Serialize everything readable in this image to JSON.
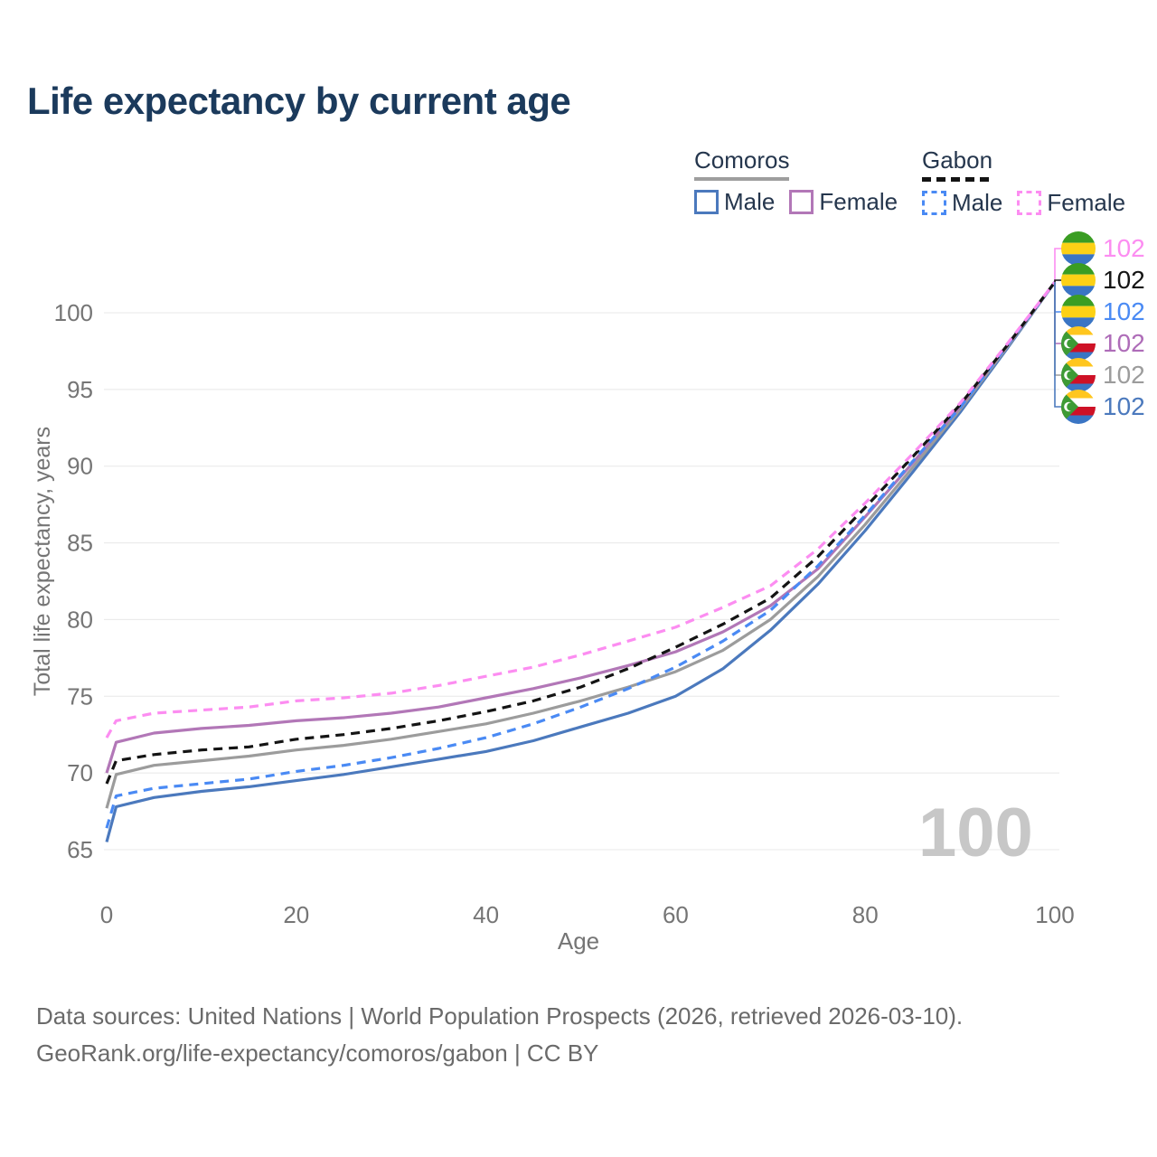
{
  "title": "Life expectancy by current age",
  "legend": {
    "groups": [
      {
        "name": "Comoros",
        "line_style": "solid",
        "items": [
          {
            "label": "Male",
            "color": "#4b79bd",
            "dashed": false
          },
          {
            "label": "Female",
            "color": "#b277b7",
            "dashed": false
          }
        ]
      },
      {
        "name": "Gabon",
        "line_style": "dashed",
        "items": [
          {
            "label": "Male",
            "color": "#4a8af4",
            "dashed": true
          },
          {
            "label": "Female",
            "color": "#fc8df1",
            "dashed": true
          }
        ]
      }
    ]
  },
  "watermark_age": "100",
  "footer": {
    "line1": "Data sources: United Nations | World Population Prospects (2026, retrieved 2026-03-10).",
    "line2": "GeoRank.org/life-expectancy/comoros/gabon | CC BY"
  },
  "chart_data": {
    "type": "line",
    "title": "Life expectancy by current age",
    "xlabel": "Age",
    "ylabel": "Total life expectancy, years",
    "xlim": [
      0,
      100
    ],
    "ylim": [
      65,
      103.5
    ],
    "x_ticks": [
      0,
      20,
      40,
      60,
      80,
      100
    ],
    "y_ticks": [
      65,
      70,
      75,
      80,
      85,
      90,
      95,
      100
    ],
    "grid": "horizontal-only",
    "legend_position": "top-right",
    "x": [
      0,
      1,
      5,
      10,
      15,
      20,
      25,
      30,
      35,
      40,
      45,
      50,
      55,
      60,
      65,
      70,
      75,
      80,
      85,
      90,
      95,
      100
    ],
    "series": [
      {
        "id": "comoros-male",
        "name": "Comoros Male",
        "color": "#4b79bd",
        "dash": false,
        "values": [
          65.5,
          67.8,
          68.4,
          68.8,
          69.1,
          69.5,
          69.9,
          70.4,
          70.9,
          71.4,
          72.1,
          73.0,
          73.9,
          75.0,
          76.8,
          79.3,
          82.3,
          85.8,
          89.6,
          93.5,
          97.7,
          102
        ]
      },
      {
        "id": "comoros-both",
        "name": "Comoros (both sexes)",
        "color": "#9c9c9c",
        "dash": false,
        "values": [
          67.7,
          69.9,
          70.5,
          70.8,
          71.1,
          71.5,
          71.8,
          72.2,
          72.7,
          73.2,
          73.9,
          74.7,
          75.6,
          76.6,
          78.0,
          80.0,
          82.8,
          86.2,
          89.9,
          93.7,
          97.8,
          102
        ]
      },
      {
        "id": "comoros-female",
        "name": "Comoros Female",
        "color": "#b277b7",
        "dash": false,
        "values": [
          70.0,
          72.0,
          72.6,
          72.9,
          73.1,
          73.4,
          73.6,
          73.9,
          74.3,
          74.9,
          75.5,
          76.2,
          77.0,
          77.9,
          79.2,
          80.9,
          83.3,
          86.7,
          90.2,
          93.9,
          97.9,
          102
        ]
      },
      {
        "id": "gabon-male",
        "name": "Gabon Male",
        "color": "#4a8af4",
        "dash": true,
        "values": [
          66.4,
          68.5,
          69.0,
          69.3,
          69.6,
          70.1,
          70.5,
          71.0,
          71.6,
          72.3,
          73.2,
          74.3,
          75.5,
          76.9,
          78.6,
          80.6,
          83.5,
          86.8,
          90.3,
          93.8,
          97.9,
          102
        ]
      },
      {
        "id": "gabon-both",
        "name": "Gabon (both sexes)",
        "color": "#141414",
        "dash": true,
        "values": [
          69.3,
          70.8,
          71.2,
          71.5,
          71.7,
          72.2,
          72.5,
          72.9,
          73.4,
          74.0,
          74.7,
          75.6,
          76.8,
          78.2,
          79.7,
          81.4,
          84.1,
          87.3,
          90.6,
          94.0,
          97.9,
          102
        ]
      },
      {
        "id": "gabon-female",
        "name": "Gabon Female",
        "color": "#fc8df1",
        "dash": true,
        "values": [
          72.3,
          73.4,
          73.9,
          74.1,
          74.3,
          74.7,
          74.9,
          75.2,
          75.7,
          76.3,
          76.9,
          77.7,
          78.6,
          79.5,
          80.8,
          82.2,
          84.6,
          87.6,
          90.8,
          94.1,
          98.0,
          102
        ]
      }
    ],
    "end_labels": [
      {
        "flag": "gabon",
        "series": "Gabon Female",
        "value": 102,
        "color": "#fc8df1"
      },
      {
        "flag": "gabon",
        "series": "Gabon (both sexes)",
        "value": 102,
        "color": "#141414"
      },
      {
        "flag": "gabon",
        "series": "Gabon Male",
        "value": 102,
        "color": "#4a8af4"
      },
      {
        "flag": "comoros",
        "series": "Comoros Female",
        "value": 102,
        "color": "#ae6cb8"
      },
      {
        "flag": "comoros",
        "series": "Comoros (both sexes)",
        "value": 102,
        "color": "#9c9c9c"
      },
      {
        "flag": "comoros",
        "series": "Comoros Male",
        "value": 102,
        "color": "#4b79bd"
      }
    ]
  }
}
